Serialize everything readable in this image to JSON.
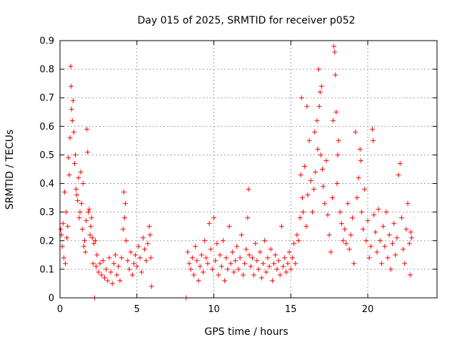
{
  "chart_data": {
    "type": "scatter",
    "title": "Day 015 of 2025, SRMTID for receiver p052",
    "xlabel": "GPS time / hours",
    "ylabel": "SRMTID / TECUs",
    "xlim": [
      0,
      24.5
    ],
    "ylim": [
      0,
      0.9
    ],
    "xticks": [
      0,
      5,
      10,
      15,
      20
    ],
    "xtick_labels": [
      "0",
      "5",
      "10",
      "15",
      "20"
    ],
    "yticks": [
      0,
      0.1,
      0.2,
      0.3,
      0.4,
      0.5,
      0.6,
      0.7,
      0.8,
      0.9
    ],
    "ytick_labels": [
      "0",
      "0.1",
      "0.2",
      "0.3",
      "0.4",
      "0.5",
      "0.6",
      "0.7",
      "0.8",
      "0.9"
    ],
    "grid": true,
    "marker": "+",
    "marker_color": "#ff0000",
    "series": [
      {
        "name": "SRMTID",
        "points": [
          [
            0.05,
            0.24
          ],
          [
            0.1,
            0.22
          ],
          [
            0.15,
            0.18
          ],
          [
            0.2,
            0.26
          ],
          [
            0.25,
            0.14
          ],
          [
            0.3,
            0.37
          ],
          [
            0.35,
            0.12
          ],
          [
            0.4,
            0.3
          ],
          [
            0.45,
            0.21
          ],
          [
            0.5,
            0.25
          ],
          [
            0.55,
            0.49
          ],
          [
            0.6,
            0.43
          ],
          [
            0.65,
            0.56
          ],
          [
            0.7,
            0.81
          ],
          [
            0.72,
            0.74
          ],
          [
            0.75,
            0.66
          ],
          [
            0.8,
            0.62
          ],
          [
            0.85,
            0.69
          ],
          [
            0.9,
            0.58
          ],
          [
            0.95,
            0.47
          ],
          [
            1.0,
            0.5
          ],
          [
            1.05,
            0.38
          ],
          [
            1.1,
            0.36
          ],
          [
            1.15,
            0.34
          ],
          [
            1.2,
            0.42
          ],
          [
            1.25,
            0.28
          ],
          [
            1.3,
            0.3
          ],
          [
            1.35,
            0.44
          ],
          [
            1.4,
            0.33
          ],
          [
            1.45,
            0.24
          ],
          [
            1.5,
            0.4
          ],
          [
            1.55,
            0.18
          ],
          [
            1.6,
            0.2
          ],
          [
            1.65,
            0.16
          ],
          [
            1.7,
            0.27
          ],
          [
            1.75,
            0.59
          ],
          [
            1.8,
            0.51
          ],
          [
            1.85,
            0.3
          ],
          [
            1.9,
            0.31
          ],
          [
            1.95,
            0.22
          ],
          [
            2.0,
            0.25
          ],
          [
            2.05,
            0.28
          ],
          [
            2.1,
            0.21
          ],
          [
            2.15,
            0.12
          ],
          [
            2.2,
            0.19
          ],
          [
            2.25,
            0.0
          ],
          [
            2.3,
            0.2
          ],
          [
            2.35,
            0.11
          ],
          [
            2.4,
            0.15
          ],
          [
            2.5,
            0.09
          ],
          [
            2.6,
            0.12
          ],
          [
            2.7,
            0.08
          ],
          [
            2.8,
            0.13
          ],
          [
            2.9,
            0.07
          ],
          [
            3.0,
            0.1
          ],
          [
            3.1,
            0.06
          ],
          [
            3.2,
            0.14
          ],
          [
            3.3,
            0.09
          ],
          [
            3.4,
            0.05
          ],
          [
            3.5,
            0.12
          ],
          [
            3.6,
            0.15
          ],
          [
            3.7,
            0.08
          ],
          [
            3.8,
            0.11
          ],
          [
            3.9,
            0.06
          ],
          [
            4.0,
            0.14
          ],
          [
            4.1,
            0.24
          ],
          [
            4.15,
            0.37
          ],
          [
            4.2,
            0.28
          ],
          [
            4.25,
            0.33
          ],
          [
            4.3,
            0.2
          ],
          [
            4.4,
            0.13
          ],
          [
            4.5,
            0.1
          ],
          [
            4.6,
            0.16
          ],
          [
            4.7,
            0.08
          ],
          [
            4.8,
            0.12
          ],
          [
            4.9,
            0.15
          ],
          [
            5.0,
            0.11
          ],
          [
            5.1,
            0.18
          ],
          [
            5.2,
            0.14
          ],
          [
            5.3,
            0.09
          ],
          [
            5.4,
            0.21
          ],
          [
            5.5,
            0.17
          ],
          [
            5.6,
            0.13
          ],
          [
            5.7,
            0.19
          ],
          [
            5.8,
            0.25
          ],
          [
            5.85,
            0.22
          ],
          [
            5.9,
            0.14
          ],
          [
            5.95,
            0.04
          ],
          [
            8.2,
            0.0
          ],
          [
            8.3,
            0.16
          ],
          [
            8.4,
            0.12
          ],
          [
            8.5,
            0.1
          ],
          [
            8.6,
            0.14
          ],
          [
            8.7,
            0.08
          ],
          [
            8.8,
            0.18
          ],
          [
            8.9,
            0.13
          ],
          [
            9.0,
            0.06
          ],
          [
            9.1,
            0.11
          ],
          [
            9.2,
            0.15
          ],
          [
            9.3,
            0.09
          ],
          [
            9.4,
            0.2
          ],
          [
            9.5,
            0.14
          ],
          [
            9.6,
            0.12
          ],
          [
            9.7,
            0.26
          ],
          [
            9.8,
            0.17
          ],
          [
            9.9,
            0.1
          ],
          [
            10.0,
            0.28
          ],
          [
            10.1,
            0.13
          ],
          [
            10.2,
            0.19
          ],
          [
            10.3,
            0.08
          ],
          [
            10.4,
            0.15
          ],
          [
            10.5,
            0.11
          ],
          [
            10.6,
            0.2
          ],
          [
            10.7,
            0.06
          ],
          [
            10.8,
            0.14
          ],
          [
            10.9,
            0.1
          ],
          [
            11.0,
            0.25
          ],
          [
            11.1,
            0.12
          ],
          [
            11.2,
            0.16
          ],
          [
            11.3,
            0.09
          ],
          [
            11.4,
            0.13
          ],
          [
            11.5,
            0.18
          ],
          [
            11.6,
            0.1
          ],
          [
            11.7,
            0.14
          ],
          [
            11.8,
            0.22
          ],
          [
            11.9,
            0.08
          ],
          [
            12.0,
            0.12
          ],
          [
            12.1,
            0.17
          ],
          [
            12.2,
            0.28
          ],
          [
            12.25,
            0.38
          ],
          [
            12.3,
            0.15
          ],
          [
            12.4,
            0.11
          ],
          [
            12.5,
            0.14
          ],
          [
            12.6,
            0.08
          ],
          [
            12.7,
            0.19
          ],
          [
            12.8,
            0.13
          ],
          [
            12.9,
            0.1
          ],
          [
            13.0,
            0.16
          ],
          [
            13.1,
            0.07
          ],
          [
            13.2,
            0.12
          ],
          [
            13.3,
            0.2
          ],
          [
            13.4,
            0.09
          ],
          [
            13.5,
            0.14
          ],
          [
            13.6,
            0.11
          ],
          [
            13.7,
            0.17
          ],
          [
            13.8,
            0.06
          ],
          [
            13.9,
            0.12
          ],
          [
            14.0,
            0.15
          ],
          [
            14.1,
            0.1
          ],
          [
            14.2,
            0.13
          ],
          [
            14.3,
            0.08
          ],
          [
            14.4,
            0.25
          ],
          [
            14.5,
            0.11
          ],
          [
            14.6,
            0.14
          ],
          [
            14.7,
            0.09
          ],
          [
            14.8,
            0.12
          ],
          [
            14.9,
            0.16
          ],
          [
            15.0,
            0.1
          ],
          [
            15.1,
            0.14
          ],
          [
            15.2,
            0.19
          ],
          [
            15.3,
            0.12
          ],
          [
            15.4,
            0.22
          ],
          [
            15.5,
            0.2
          ],
          [
            15.6,
            0.28
          ],
          [
            15.65,
            0.43
          ],
          [
            15.7,
            0.7
          ],
          [
            15.75,
            0.35
          ],
          [
            15.8,
            0.3
          ],
          [
            15.9,
            0.46
          ],
          [
            16.0,
            0.25
          ],
          [
            16.05,
            0.67
          ],
          [
            16.1,
            0.36
          ],
          [
            16.2,
            0.55
          ],
          [
            16.3,
            0.41
          ],
          [
            16.4,
            0.3
          ],
          [
            16.5,
            0.38
          ],
          [
            16.55,
            0.58
          ],
          [
            16.6,
            0.44
          ],
          [
            16.7,
            0.62
          ],
          [
            16.75,
            0.52
          ],
          [
            16.8,
            0.8
          ],
          [
            16.85,
            0.67
          ],
          [
            16.9,
            0.72
          ],
          [
            16.95,
            0.5
          ],
          [
            17.0,
            0.74
          ],
          [
            17.05,
            0.45
          ],
          [
            17.1,
            0.39
          ],
          [
            17.2,
            0.33
          ],
          [
            17.3,
            0.48
          ],
          [
            17.4,
            0.29
          ],
          [
            17.5,
            0.22
          ],
          [
            17.6,
            0.16
          ],
          [
            17.7,
            0.35
          ],
          [
            17.75,
            0.62
          ],
          [
            17.8,
            0.88
          ],
          [
            17.85,
            0.86
          ],
          [
            17.9,
            0.78
          ],
          [
            17.95,
            0.65
          ],
          [
            18.0,
            0.4
          ],
          [
            18.05,
            0.5
          ],
          [
            18.1,
            0.55
          ],
          [
            18.2,
            0.3
          ],
          [
            18.3,
            0.26
          ],
          [
            18.4,
            0.2
          ],
          [
            18.5,
            0.24
          ],
          [
            18.6,
            0.19
          ],
          [
            18.7,
            0.33
          ],
          [
            18.8,
            0.17
          ],
          [
            18.9,
            0.22
          ],
          [
            19.0,
            0.28
          ],
          [
            19.1,
            0.12
          ],
          [
            19.2,
            0.58
          ],
          [
            19.3,
            0.35
          ],
          [
            19.4,
            0.42
          ],
          [
            19.5,
            0.52
          ],
          [
            19.55,
            0.48
          ],
          [
            19.6,
            0.3
          ],
          [
            19.7,
            0.24
          ],
          [
            19.8,
            0.38
          ],
          [
            19.9,
            0.2
          ],
          [
            20.0,
            0.27
          ],
          [
            20.1,
            0.14
          ],
          [
            20.2,
            0.18
          ],
          [
            20.3,
            0.59
          ],
          [
            20.35,
            0.55
          ],
          [
            20.4,
            0.29
          ],
          [
            20.5,
            0.23
          ],
          [
            20.6,
            0.16
          ],
          [
            20.7,
            0.31
          ],
          [
            20.8,
            0.2
          ],
          [
            20.9,
            0.12
          ],
          [
            21.0,
            0.25
          ],
          [
            21.1,
            0.18
          ],
          [
            21.2,
            0.3
          ],
          [
            21.3,
            0.14
          ],
          [
            21.4,
            0.22
          ],
          [
            21.5,
            0.1
          ],
          [
            21.6,
            0.19
          ],
          [
            21.7,
            0.26
          ],
          [
            21.8,
            0.15
          ],
          [
            21.9,
            0.21
          ],
          [
            22.0,
            0.43
          ],
          [
            22.1,
            0.47
          ],
          [
            22.2,
            0.28
          ],
          [
            22.3,
            0.17
          ],
          [
            22.4,
            0.12
          ],
          [
            22.5,
            0.24
          ],
          [
            22.6,
            0.33
          ],
          [
            22.7,
            0.19
          ],
          [
            22.75,
            0.08
          ],
          [
            22.8,
            0.23
          ],
          [
            22.85,
            0.21
          ]
        ]
      }
    ]
  }
}
